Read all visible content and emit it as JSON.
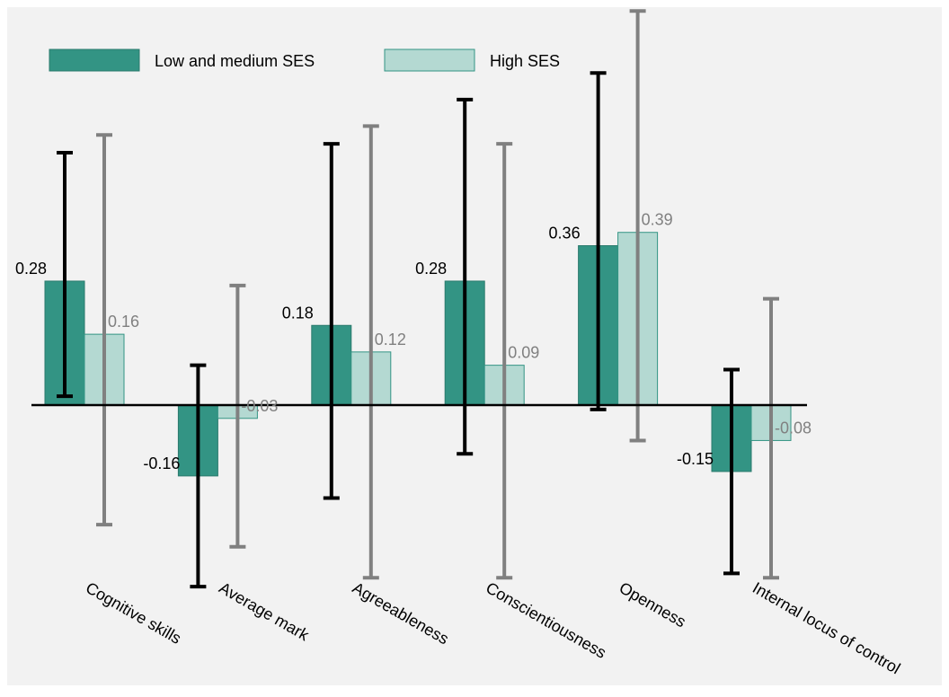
{
  "chart_data": {
    "type": "bar",
    "title": "",
    "xlabel": "",
    "ylabel": "",
    "ylim": [
      -0.45,
      0.6
    ],
    "grid": false,
    "legend": "top-left",
    "categories": [
      "Cognitive skills",
      "Average mark",
      "Agreeableness",
      "Conscientiousness",
      "Openness",
      "Internal locus of control"
    ],
    "series": [
      {
        "name": "Low and medium SES",
        "color": "#339484",
        "border": "#2b7a6d",
        "label_color": "#000000",
        "error_color": "#000000",
        "values": [
          0.28,
          -0.16,
          0.18,
          0.28,
          0.36,
          -0.15
        ],
        "labels": [
          "0.28",
          "-0.16",
          "0.18",
          "0.28",
          "0.36",
          "-0.15"
        ],
        "error_low": [
          0.02,
          -0.41,
          -0.21,
          -0.11,
          -0.01,
          -0.38
        ],
        "error_high": [
          0.57,
          0.09,
          0.59,
          0.69,
          0.75,
          0.08
        ]
      },
      {
        "name": "High SES",
        "color": "#b4d9d2",
        "border": "#339484",
        "label_color": "#808080",
        "error_color": "#808080",
        "values": [
          0.16,
          -0.03,
          0.12,
          0.09,
          0.39,
          -0.08
        ],
        "labels": [
          "0.16",
          "-0.03",
          "0.12",
          "0.09",
          "0.39",
          "-0.08"
        ],
        "error_low": [
          -0.27,
          -0.32,
          -0.39,
          -0.39,
          -0.08,
          -0.39
        ],
        "error_high": [
          0.61,
          0.27,
          0.63,
          0.59,
          0.89,
          0.24
        ]
      }
    ]
  }
}
